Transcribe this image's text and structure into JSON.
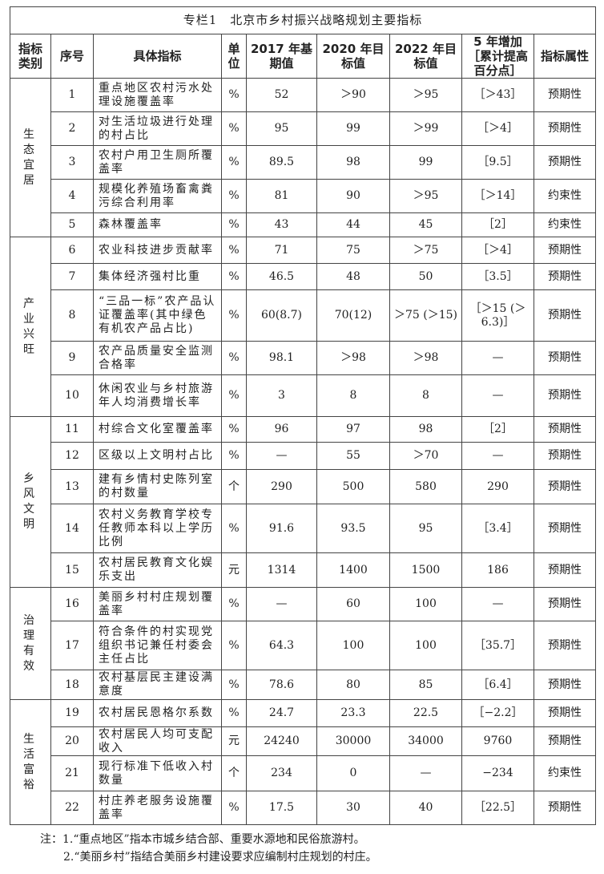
{
  "title": "专栏1　北京市乡村振兴战略规划主要指标",
  "headers": [
    "指标类别",
    "序号",
    "具体指标",
    "单位",
    "2017 年基期值",
    "2020 年目标值",
    "2022 年目标值",
    "5 年增加［累计提高百分点］",
    "指标属性"
  ],
  "categories": [
    {
      "name": "生态宜居",
      "rows": 5
    },
    {
      "name": "产业兴旺",
      "rows": 5
    },
    {
      "name": "乡风文明",
      "rows": 5
    },
    {
      "name": "治理有效",
      "rows": 3
    },
    {
      "name": "生活富裕",
      "rows": 4
    }
  ],
  "rows": [
    [
      "1",
      "重点地区农村污水处理设施覆盖率",
      "%",
      "52",
      "＞90",
      "＞95",
      "［＞43］",
      "预期性"
    ],
    [
      "2",
      "对生活垃圾进行处理的村占比",
      "%",
      "95",
      "99",
      "＞99",
      "［＞4］",
      "预期性"
    ],
    [
      "3",
      "农村户用卫生厕所覆盖率",
      "%",
      "89.5",
      "98",
      "99",
      "［9.5］",
      "预期性"
    ],
    [
      "4",
      "规模化养殖场畜禽粪污综合利用率",
      "%",
      "81",
      "90",
      "＞95",
      "［＞14］",
      "约束性"
    ],
    [
      "5",
      "森林覆盖率",
      "%",
      "43",
      "44",
      "45",
      "［2］",
      "约束性"
    ],
    [
      "6",
      "农业科技进步贡献率",
      "%",
      "71",
      "75",
      "＞75",
      "［＞4］",
      "预期性"
    ],
    [
      "7",
      "集体经济强村比重",
      "%",
      "46.5",
      "48",
      "50",
      "［3.5］",
      "预期性"
    ],
    [
      "8",
      "“三品一标”农产品认证覆盖率(其中绿色有机农产品占比)",
      "%",
      "60(8.7)",
      "70(12)",
      "＞75 (＞15)",
      "［＞15 (＞6.3)］",
      "预期性"
    ],
    [
      "9",
      "农产品质量安全监测合格率",
      "%",
      "98.1",
      "＞98",
      "＞98",
      "—",
      "预期性"
    ],
    [
      "10",
      "休闲农业与乡村旅游年人均消费增长率",
      "%",
      "3",
      "8",
      "8",
      "—",
      "预期性"
    ],
    [
      "11",
      "村综合文化室覆盖率",
      "%",
      "96",
      "97",
      "98",
      "［2］",
      "预期性"
    ],
    [
      "12",
      "区级以上文明村占比",
      "%",
      "—",
      "55",
      "＞70",
      "—",
      "预期性"
    ],
    [
      "13",
      "建有乡情村史陈列室的村数量",
      "个",
      "290",
      "500",
      "580",
      "290",
      "预期性"
    ],
    [
      "14",
      "农村义务教育学校专任教师本科以上学历比例",
      "%",
      "91.6",
      "93.5",
      "95",
      "［3.4］",
      "预期性"
    ],
    [
      "15",
      "农村居民教育文化娱乐支出",
      "元",
      "1314",
      "1400",
      "1500",
      "186",
      "预期性"
    ],
    [
      "16",
      "美丽乡村村庄规划覆盖率",
      "%",
      "—",
      "60",
      "100",
      "—",
      "预期性"
    ],
    [
      "17",
      "符合条件的村实现党组织书记兼任村委会主任占比",
      "%",
      "64.3",
      "100",
      "100",
      "［35.7］",
      "预期性"
    ],
    [
      "18",
      "农村基层民主建设满意度",
      "%",
      "78.6",
      "80",
      "85",
      "［6.4］",
      "预期性"
    ],
    [
      "19",
      "农村居民恩格尔系数",
      "%",
      "24.7",
      "23.3",
      "22.5",
      "［−2.2］",
      "预期性"
    ],
    [
      "20",
      "农村居民人均可支配收入",
      "元",
      "24240",
      "30000",
      "34000",
      "9760",
      "预期性"
    ],
    [
      "21",
      "现行标准下低收入村数量",
      "个",
      "234",
      "0",
      "—",
      "−234",
      "约束性"
    ],
    [
      "22",
      "村庄养老服务设施覆盖率",
      "%",
      "17.5",
      "30",
      "40",
      "［22.5］",
      "预期性"
    ]
  ],
  "notes": [
    "注：1.“重点地区”指本市城乡结合部、重要水源地和民俗旅游村。",
    "2.“美丽乡村”指结合美丽乡村建设要求应编制村庄规划的村庄。"
  ]
}
